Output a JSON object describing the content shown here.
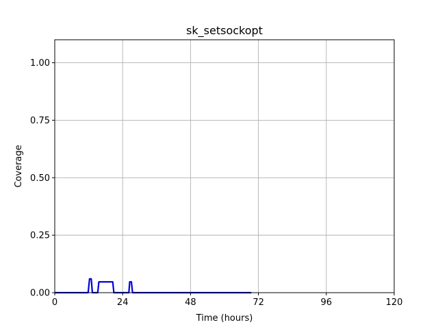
{
  "chart_data": {
    "type": "line",
    "title": "sk_setsockopt",
    "xlabel": "Time (hours)",
    "ylabel": "Coverage",
    "xlim": [
      0,
      120
    ],
    "ylim": [
      0,
      1.1
    ],
    "xticks": [
      0,
      24,
      48,
      72,
      96,
      120
    ],
    "xtick_labels": [
      "0",
      "24",
      "48",
      "72",
      "96",
      "120"
    ],
    "yticks": [
      0,
      0.25,
      0.5,
      0.75,
      1.0
    ],
    "ytick_labels": [
      "0.00",
      "0.25",
      "0.50",
      "0.75",
      "1.00"
    ],
    "grid": true,
    "series": [
      {
        "color": "#0000dd",
        "x": [
          0,
          11.8,
          12.3,
          12.9,
          13.3,
          15.2,
          15.6,
          20.5,
          20.9,
          26.2,
          26.5,
          27.1,
          27.5,
          40,
          69.5
        ],
        "y": [
          0,
          0,
          0.06,
          0.06,
          0,
          0,
          0.047,
          0.047,
          0,
          0,
          0.047,
          0.047,
          0,
          0,
          0
        ]
      }
    ]
  }
}
